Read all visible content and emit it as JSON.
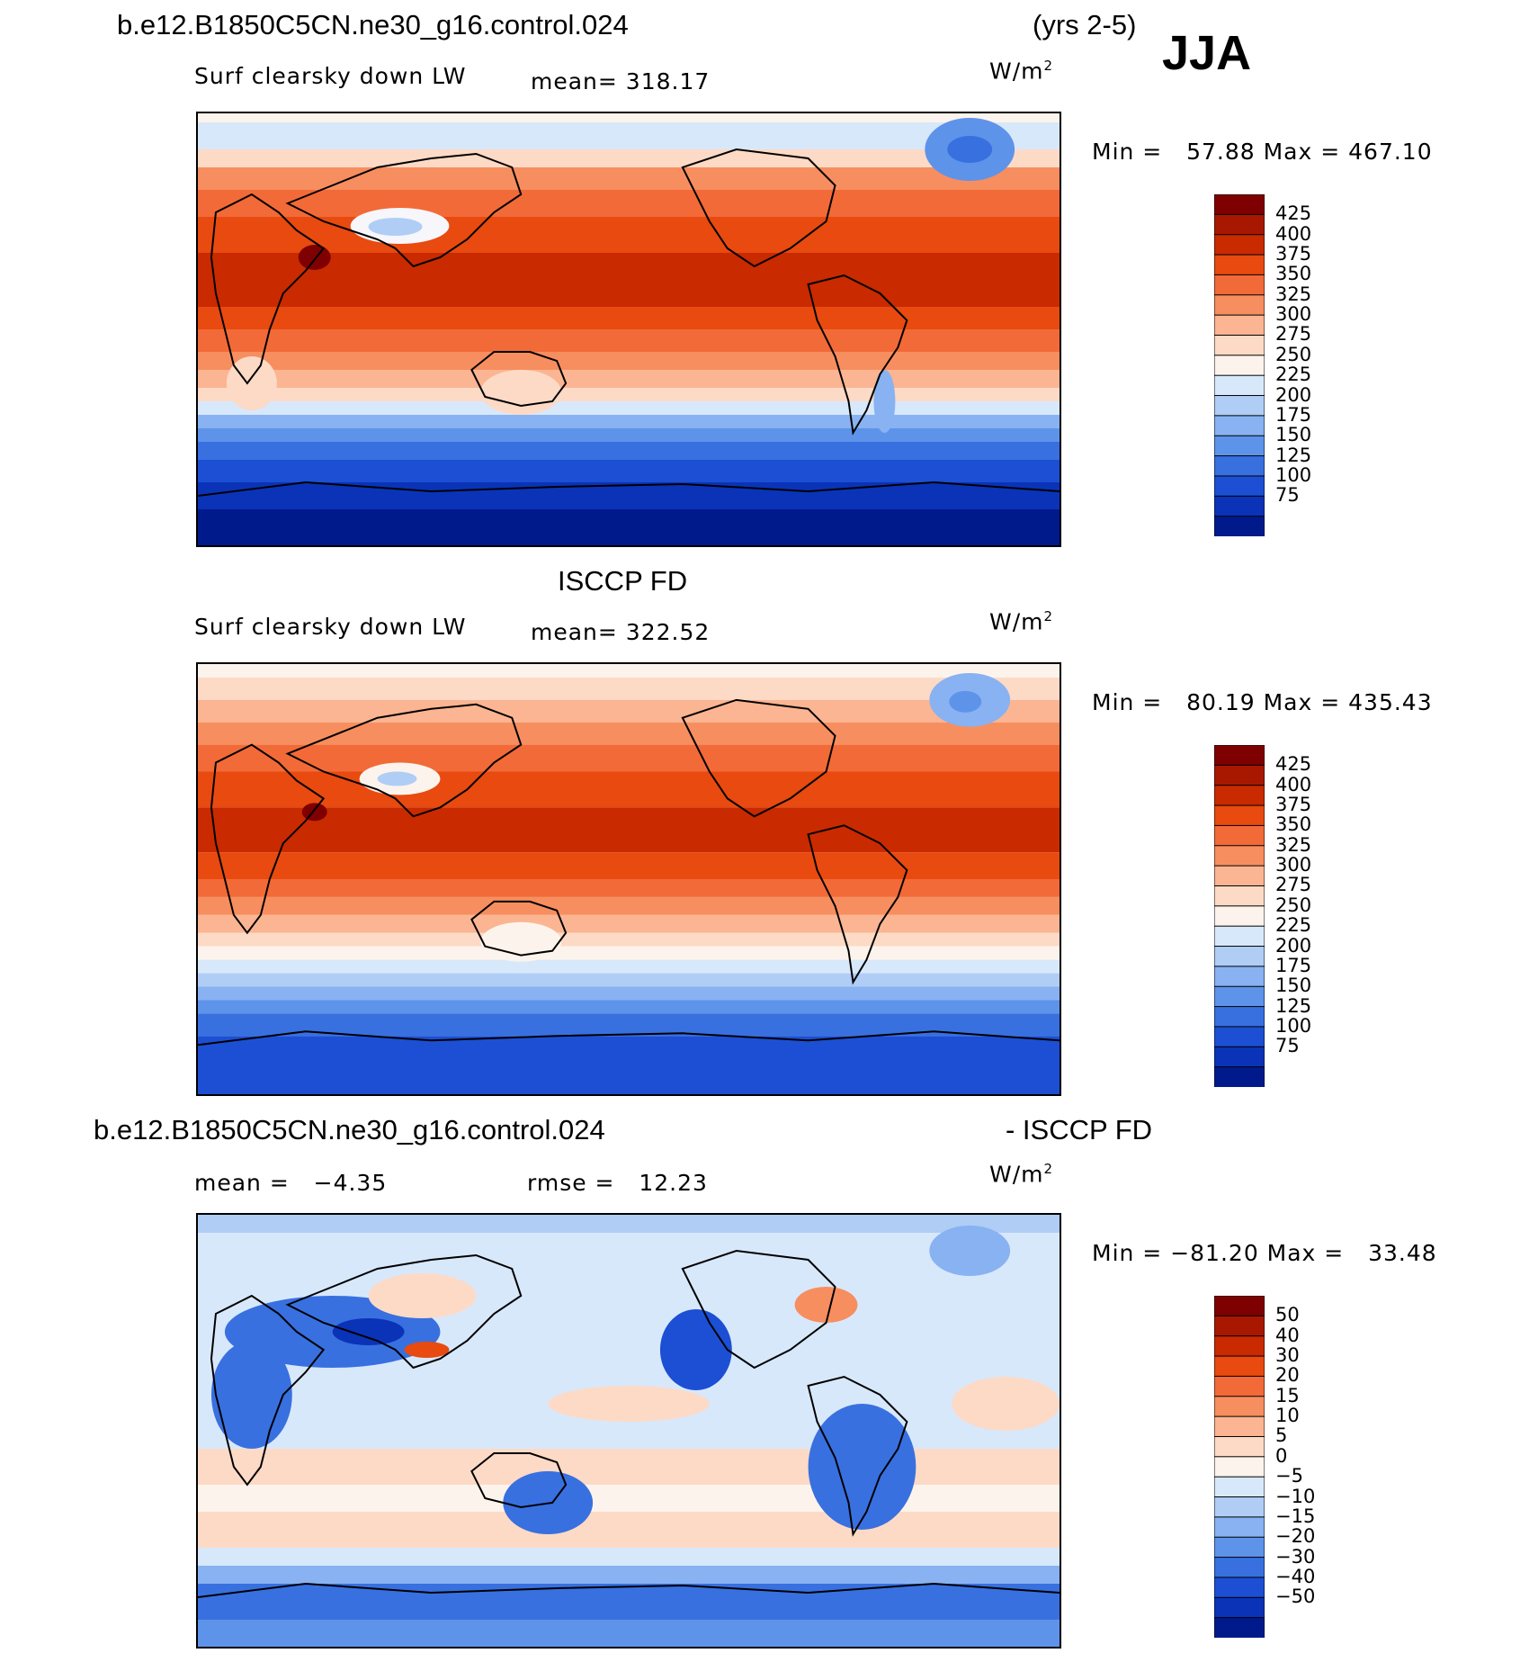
{
  "header": {
    "case_name": "b.e12.B1850C5CN.ne30_g16.control.024",
    "years": "(yrs 2-5)",
    "season": "JJA"
  },
  "panels": [
    {
      "id": "model",
      "variable": "Surf clearsky down LW",
      "mean_text": "mean= 318.17",
      "units": "W/m",
      "units_sup": "2",
      "min_max_text": "Min =   57.88 Max = 467.10",
      "min": 57.88,
      "max": 467.1,
      "colorbar_labels": [
        "425",
        "400",
        "375",
        "350",
        "325",
        "300",
        "275",
        "250",
        "225",
        "200",
        "175",
        "150",
        "125",
        "100",
        "75"
      ],
      "colorbar_colors": [
        "#7f0000",
        "#a81800",
        "#c92a00",
        "#e84a10",
        "#f26a38",
        "#f78e5f",
        "#fbb592",
        "#fddac6",
        "#fcf4ec",
        "#d8e8fb",
        "#b0cdf6",
        "#88b2f1",
        "#5e93ea",
        "#3870e0",
        "#1c4fd3",
        "#0a33b8",
        "#001a8c"
      ]
    },
    {
      "id": "obs",
      "title": "ISCCP FD",
      "variable": "Surf clearsky down LW",
      "mean_text": "mean= 322.52",
      "units": "W/m",
      "units_sup": "2",
      "min_max_text": "Min =   80.19 Max = 435.43",
      "min": 80.19,
      "max": 435.43,
      "colorbar_labels": [
        "425",
        "400",
        "375",
        "350",
        "325",
        "300",
        "275",
        "250",
        "225",
        "200",
        "175",
        "150",
        "125",
        "100",
        "75"
      ],
      "colorbar_colors": [
        "#7f0000",
        "#a81800",
        "#c92a00",
        "#e84a10",
        "#f26a38",
        "#f78e5f",
        "#fbb592",
        "#fddac6",
        "#fcf4ec",
        "#d8e8fb",
        "#b0cdf6",
        "#88b2f1",
        "#5e93ea",
        "#3870e0",
        "#1c4fd3",
        "#0a33b8",
        "#001a8c"
      ]
    },
    {
      "id": "diff",
      "title_left": "b.e12.B1850C5CN.ne30_g16.control.024",
      "title_right": "- ISCCP FD",
      "mean_text": "mean =   −4.35",
      "rmse_text": "rmse =   12.23",
      "units": "W/m",
      "units_sup": "2",
      "min_max_text": "Min = −81.20 Max =   33.48",
      "min": -81.2,
      "max": 33.48,
      "colorbar_labels": [
        "50",
        "40",
        "30",
        "20",
        "15",
        "10",
        "5",
        "0",
        "−5",
        "−10",
        "−15",
        "−20",
        "−30",
        "−40",
        "−50"
      ],
      "colorbar_colors": [
        "#7f0000",
        "#a81800",
        "#c92a00",
        "#e84a10",
        "#f26a38",
        "#f78e5f",
        "#fbb592",
        "#fddac6",
        "#fcf4ec",
        "#d8e8fb",
        "#b0cdf6",
        "#88b2f1",
        "#5e93ea",
        "#3870e0",
        "#1c4fd3",
        "#0a33b8",
        "#001a8c"
      ]
    }
  ]
}
